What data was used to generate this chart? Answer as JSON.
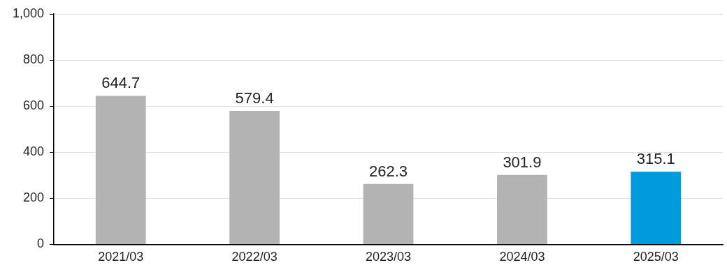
{
  "chart_data": {
    "type": "bar",
    "categories": [
      "2021/03",
      "2022/03",
      "2023/03",
      "2024/03",
      "2025/03"
    ],
    "values": [
      644.7,
      579.4,
      262.3,
      301.9,
      315.1
    ],
    "colors": [
      "#b3b3b3",
      "#b3b3b3",
      "#b3b3b3",
      "#b3b3b3",
      "#009bdc"
    ],
    "ylim": [
      0,
      1000
    ],
    "yticks": [
      0,
      200,
      400,
      600,
      800,
      {
        "value": 1000,
        "label": "1,000"
      }
    ],
    "grid": "y",
    "data_labels": true,
    "legend": false
  }
}
